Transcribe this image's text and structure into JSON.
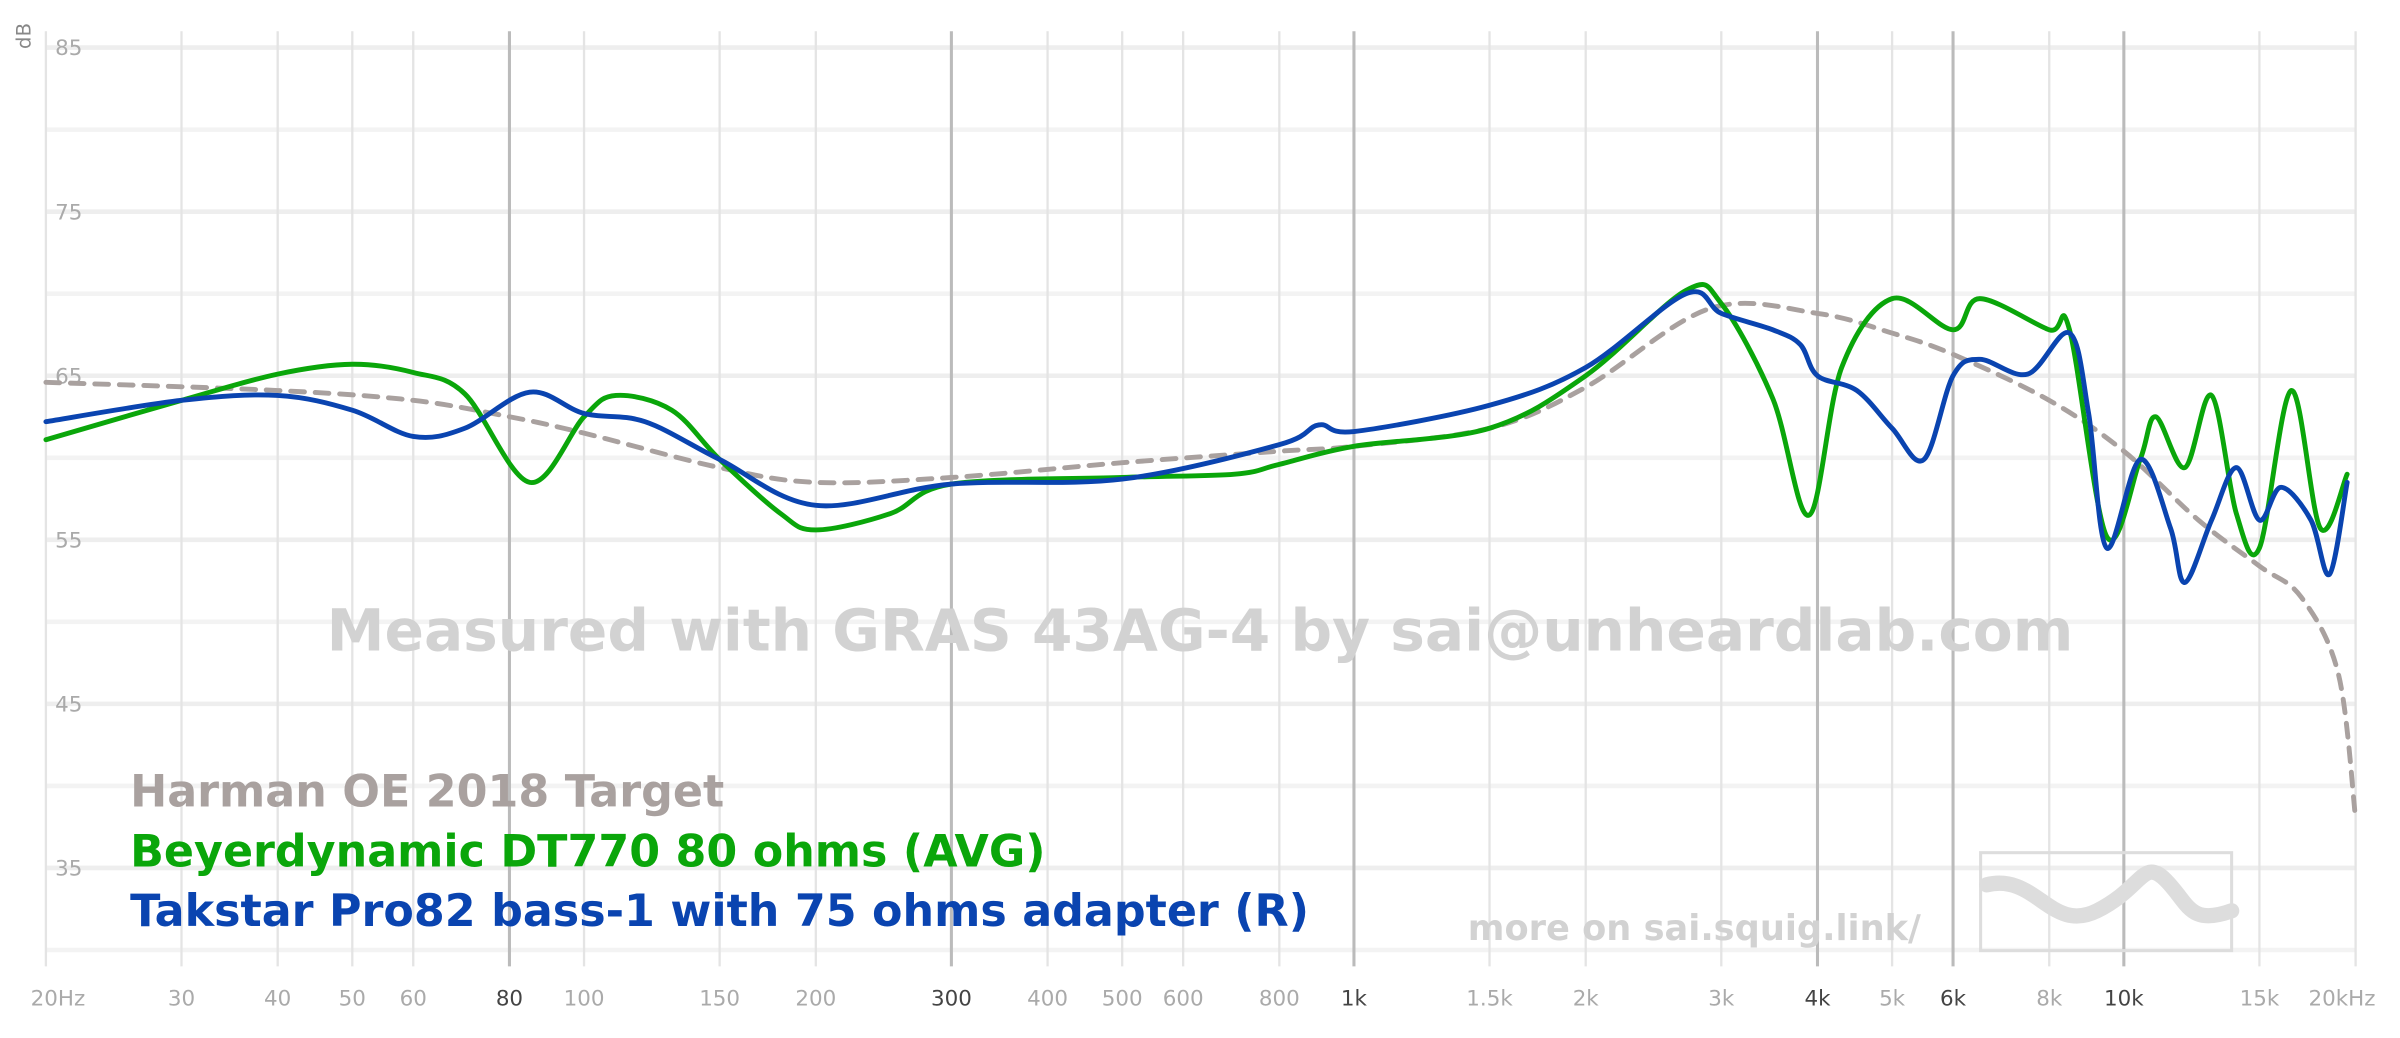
{
  "chart_data": {
    "type": "line",
    "x_scale": "log",
    "y_unit": "dB",
    "xlim": [
      20,
      20000
    ],
    "ylim": [
      29,
      86
    ],
    "xticks": [
      {
        "value": 20,
        "label": "20Hz"
      },
      30,
      40,
      50,
      60,
      80,
      100,
      150,
      200,
      300,
      400,
      500,
      600,
      800,
      {
        "value": 1000,
        "label": "1k"
      },
      {
        "value": 1500,
        "label": "1.5k"
      },
      {
        "value": 2000,
        "label": "2k"
      },
      {
        "value": 3000,
        "label": "3k"
      },
      {
        "value": 4000,
        "label": "4k"
      },
      {
        "value": 5000,
        "label": "5k"
      },
      {
        "value": 6000,
        "label": "6k"
      },
      {
        "value": 8000,
        "label": "8k"
      },
      {
        "value": 10000,
        "label": "10k"
      },
      {
        "value": 15000,
        "label": "15k"
      },
      {
        "value": 20000,
        "label": "20kHz"
      }
    ],
    "emphasized_xticks": [
      80,
      300,
      1000,
      4000,
      6000,
      10000
    ],
    "yticks": [
      85,
      75,
      65,
      55,
      45,
      35
    ],
    "y_minor_ticks": [
      80,
      70,
      60,
      50,
      40,
      30
    ],
    "grid": true,
    "watermark": "Measured with GRAS 43AG-4 by sai@unheardlab.com",
    "footer": "more on sai.squig.link/",
    "series": [
      {
        "name": "Harman OE 2018 Target",
        "color": "#a9a19f",
        "dashed": true,
        "x": [
          20,
          40,
          60,
          80,
          100,
          150,
          200,
          300,
          500,
          800,
          1000,
          1500,
          2000,
          2900,
          4000,
          5000,
          6000,
          8000,
          10000,
          12500,
          15000,
          17000,
          19000,
          20000
        ],
        "values": [
          64.6,
          64.1,
          63.5,
          62.5,
          61.5,
          59.4,
          58.5,
          58.8,
          59.7,
          60.4,
          60.7,
          61.8,
          64.3,
          69.1,
          68.8,
          67.6,
          66.3,
          63.5,
          60.4,
          56.2,
          53.4,
          51.5,
          46.8,
          38.0
        ]
      },
      {
        "name": "Beyerdynamic DT770 80 ohms (AVG)",
        "color": "#0aa60a",
        "dashed": false,
        "x": [
          20,
          30,
          40,
          50,
          60,
          70,
          85,
          100,
          110,
          130,
          150,
          180,
          200,
          250,
          300,
          500,
          700,
          800,
          1000,
          1500,
          2000,
          2700,
          3000,
          3500,
          3900,
          4300,
          5000,
          6000,
          6500,
          8000,
          8500,
          9500,
          10500,
          11000,
          12000,
          13000,
          14000,
          15000,
          16500,
          18000,
          19500
        ],
        "values": [
          61.1,
          63.5,
          65.1,
          65.7,
          65.2,
          63.9,
          58.5,
          62.5,
          63.8,
          62.9,
          59.9,
          56.6,
          55.6,
          56.6,
          58.4,
          58.8,
          59.0,
          59.6,
          60.7,
          61.8,
          65.0,
          70.2,
          69.4,
          63.6,
          56.5,
          65.5,
          69.7,
          67.8,
          69.7,
          67.8,
          67.8,
          55.2,
          59.9,
          62.5,
          59.4,
          63.8,
          56.6,
          54.5,
          64.1,
          55.7,
          59.0
        ]
      },
      {
        "name": "Takstar Pro82 bass-1 with 75 ohms adapter (R)",
        "color": "#0a44b0",
        "dashed": false,
        "x": [
          20,
          30,
          40,
          50,
          60,
          70,
          85,
          100,
          120,
          150,
          200,
          300,
          500,
          800,
          900,
          1000,
          1500,
          2000,
          2700,
          3000,
          3500,
          3800,
          4000,
          4500,
          5000,
          5500,
          6000,
          6500,
          7500,
          8500,
          9000,
          9500,
          10500,
          11500,
          12000,
          13000,
          14000,
          15000,
          16000,
          17500,
          18500,
          19500
        ],
        "values": [
          62.2,
          63.5,
          63.8,
          62.9,
          61.3,
          61.8,
          64.0,
          62.7,
          62.2,
          59.9,
          57.1,
          58.4,
          58.7,
          60.8,
          62.0,
          61.6,
          63.2,
          65.5,
          70.0,
          68.8,
          67.8,
          66.9,
          65.0,
          64.1,
          61.8,
          59.9,
          65.0,
          66.0,
          65.1,
          67.6,
          62.7,
          54.5,
          59.9,
          55.7,
          52.4,
          56.2,
          59.4,
          56.2,
          58.2,
          56.2,
          52.9,
          58.5
        ]
      }
    ]
  }
}
